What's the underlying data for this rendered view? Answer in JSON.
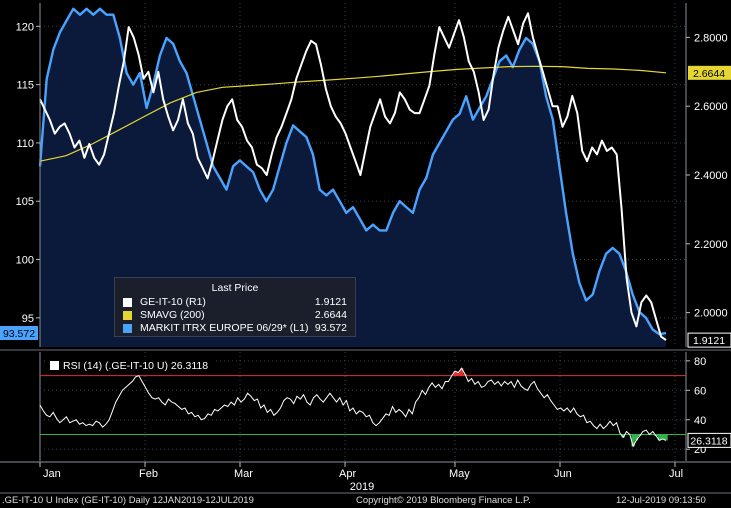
{
  "footer": {
    "left": ".GE-IT-10 U Index (GE-IT-10)  Daily 12JAN2019-12JUL2019",
    "center": "Copyright© 2019 Bloomberg Finance L.P.",
    "right": "12-Jul-2019 09:13:50"
  },
  "legend": {
    "title": "Last Price",
    "rows": [
      {
        "name": "GE-IT-10  (R1)",
        "value": "1.9121",
        "color": "#ffffff"
      },
      {
        "name": "SMAVG (200)",
        "value": "2.6644",
        "color": "#e5d634"
      },
      {
        "name": "MARKIT ITRX EUROPE 06/29*  (L1)",
        "value": "93.572",
        "color": "#4aa3ff"
      }
    ]
  },
  "rsi_legend": "RSI (14) (.GE-IT-10 U) 26.3118",
  "tags": {
    "left_itrx": "93.572",
    "right_ge": "1.9121",
    "right_smavg": "2.6644",
    "rsi": "26.3118"
  },
  "chart_data": [
    {
      "type": "line",
      "x_labels": [
        "Jan",
        "Feb",
        "Mar",
        "Apr",
        "May",
        "Jun",
        "Jul"
      ],
      "x_year_label": "2019",
      "left_axis": {
        "ticks": [
          95,
          100,
          105,
          110,
          115,
          120
        ],
        "range": [
          92.5,
          122
        ]
      },
      "right_axis": {
        "ticks": [
          2.0,
          2.2,
          2.4,
          2.6,
          2.8
        ],
        "range": [
          1.9,
          2.9
        ]
      },
      "series": [
        {
          "name": "GE-IT-10",
          "axis": "right",
          "color": "#ffffff",
          "values": [
            2.62,
            2.59,
            2.56,
            2.52,
            2.54,
            2.55,
            2.52,
            2.48,
            2.5,
            2.45,
            2.49,
            2.45,
            2.43,
            2.46,
            2.52,
            2.58,
            2.66,
            2.73,
            2.83,
            2.8,
            2.75,
            2.68,
            2.7,
            2.64,
            2.7,
            2.62,
            2.57,
            2.53,
            2.56,
            2.62,
            2.55,
            2.52,
            2.45,
            2.42,
            2.39,
            2.44,
            2.5,
            2.56,
            2.6,
            2.62,
            2.56,
            2.54,
            2.5,
            2.48,
            2.43,
            2.42,
            2.4,
            2.46,
            2.51,
            2.54,
            2.58,
            2.62,
            2.68,
            2.72,
            2.76,
            2.79,
            2.78,
            2.72,
            2.65,
            2.6,
            2.57,
            2.55,
            2.52,
            2.48,
            2.44,
            2.4,
            2.47,
            2.54,
            2.58,
            2.62,
            2.57,
            2.55,
            2.58,
            2.64,
            2.62,
            2.59,
            2.58,
            2.58,
            2.62,
            2.66,
            2.75,
            2.83,
            2.8,
            2.77,
            2.81,
            2.85,
            2.8,
            2.73,
            2.7,
            2.64,
            2.56,
            2.59,
            2.69,
            2.77,
            2.82,
            2.86,
            2.82,
            2.78,
            2.84,
            2.87,
            2.8,
            2.75,
            2.7,
            2.65,
            2.6,
            2.6,
            2.54,
            2.57,
            2.63,
            2.58,
            2.47,
            2.44,
            2.48,
            2.46,
            2.5,
            2.47,
            2.48,
            2.46,
            2.3,
            2.1,
            2.0,
            1.96,
            2.03,
            2.05,
            2.03,
            1.98,
            1.93,
            1.92
          ]
        },
        {
          "name": "SMAVG (200)",
          "axis": "right",
          "color": "#e5d634",
          "values": [
            2.44,
            2.456,
            2.49,
            2.53,
            2.57,
            2.61,
            2.64,
            2.655,
            2.66,
            2.665,
            2.671,
            2.676,
            2.681,
            2.687,
            2.694,
            2.701,
            2.707,
            2.711,
            2.715,
            2.716,
            2.715,
            2.71,
            2.708,
            2.704,
            2.697
          ]
        },
        {
          "name": "MARKIT ITRX EUROPE 06/29*",
          "axis": "left",
          "color": "#4aa3ff",
          "fill": "#0b1a3a",
          "values": [
            108.0,
            115.5,
            118.0,
            119.5,
            120.5,
            121.5,
            121.0,
            121.5,
            121.0,
            121.5,
            121.0,
            121.0,
            119.0,
            116.0,
            115.0,
            116.0,
            113.0,
            115.0,
            117.5,
            119.0,
            118.5,
            117.0,
            116.0,
            114.0,
            112.0,
            110.0,
            108.0,
            107.0,
            106.0,
            108.0,
            108.5,
            108.0,
            107.5,
            106.0,
            105.0,
            106.0,
            108.0,
            110.0,
            111.5,
            111.0,
            110.5,
            109.0,
            106.0,
            105.5,
            106.0,
            105.0,
            104.0,
            104.5,
            103.5,
            102.5,
            103.0,
            102.5,
            102.5,
            104.0,
            105.0,
            104.5,
            104.0,
            106.0,
            107.0,
            109.0,
            110.0,
            111.0,
            112.0,
            112.5,
            114.0,
            112.0,
            113.0,
            114.0,
            115.5,
            117.0,
            117.5,
            116.5,
            118.0,
            119.0,
            118.5,
            117.0,
            114.0,
            112.0,
            108.0,
            104.0,
            100.5,
            98.0,
            96.5,
            97.0,
            99.0,
            100.5,
            101.0,
            100.5,
            99.0,
            97.0,
            95.5,
            95.0,
            94.0,
            93.6,
            93.7
          ]
        }
      ]
    },
    {
      "type": "line",
      "title": "RSI (14) (.GE-IT-10 U) 26.3118",
      "y_axis": {
        "ticks": [
          20,
          40,
          60,
          80
        ],
        "range": [
          12,
          86
        ]
      },
      "reference_lines": [
        {
          "value": 70,
          "color": "#e03030"
        },
        {
          "value": 30,
          "color": "#2fb34a"
        }
      ],
      "series": [
        {
          "name": "RSI (14)",
          "color": "#ffffff",
          "values": [
            50,
            46,
            43,
            42,
            45,
            41,
            38,
            40,
            42,
            38,
            39,
            40,
            37,
            38,
            36,
            37,
            36,
            39,
            38,
            35,
            37,
            40,
            46,
            52,
            56,
            60,
            62,
            64,
            66,
            69,
            70,
            66,
            62,
            58,
            55,
            54,
            55,
            52,
            50,
            54,
            52,
            51,
            49,
            47,
            48,
            44,
            45,
            42,
            43,
            40,
            41,
            44,
            43,
            47,
            46,
            48,
            50,
            49,
            52,
            50,
            55,
            52,
            54,
            58,
            56,
            53,
            54,
            48,
            50,
            45,
            47,
            43,
            45,
            48,
            53,
            55,
            54,
            51,
            56,
            54,
            57,
            52,
            50,
            55,
            57,
            54,
            52,
            55,
            58,
            55,
            52,
            55,
            50,
            53,
            46,
            48,
            44,
            46,
            45,
            42,
            43,
            38,
            36,
            38,
            41,
            44,
            43,
            49,
            45,
            47,
            45,
            42,
            47,
            44,
            52,
            55,
            60,
            57,
            62,
            65,
            62,
            64,
            61,
            66,
            66,
            70,
            73,
            72,
            75,
            71,
            66,
            68,
            64,
            66,
            62,
            63,
            66,
            67,
            64,
            66,
            63,
            66,
            64,
            66,
            62,
            67,
            63,
            61,
            60,
            64,
            66,
            61,
            58,
            55,
            57,
            53,
            50,
            47,
            48,
            46,
            48,
            45,
            48,
            44,
            42,
            43,
            38,
            39,
            36,
            34,
            37,
            34,
            36,
            39,
            36,
            38,
            31,
            28,
            32,
            30,
            22,
            26,
            29,
            32,
            33,
            30,
            32,
            29,
            26,
            27,
            26
          ]
        }
      ]
    }
  ]
}
